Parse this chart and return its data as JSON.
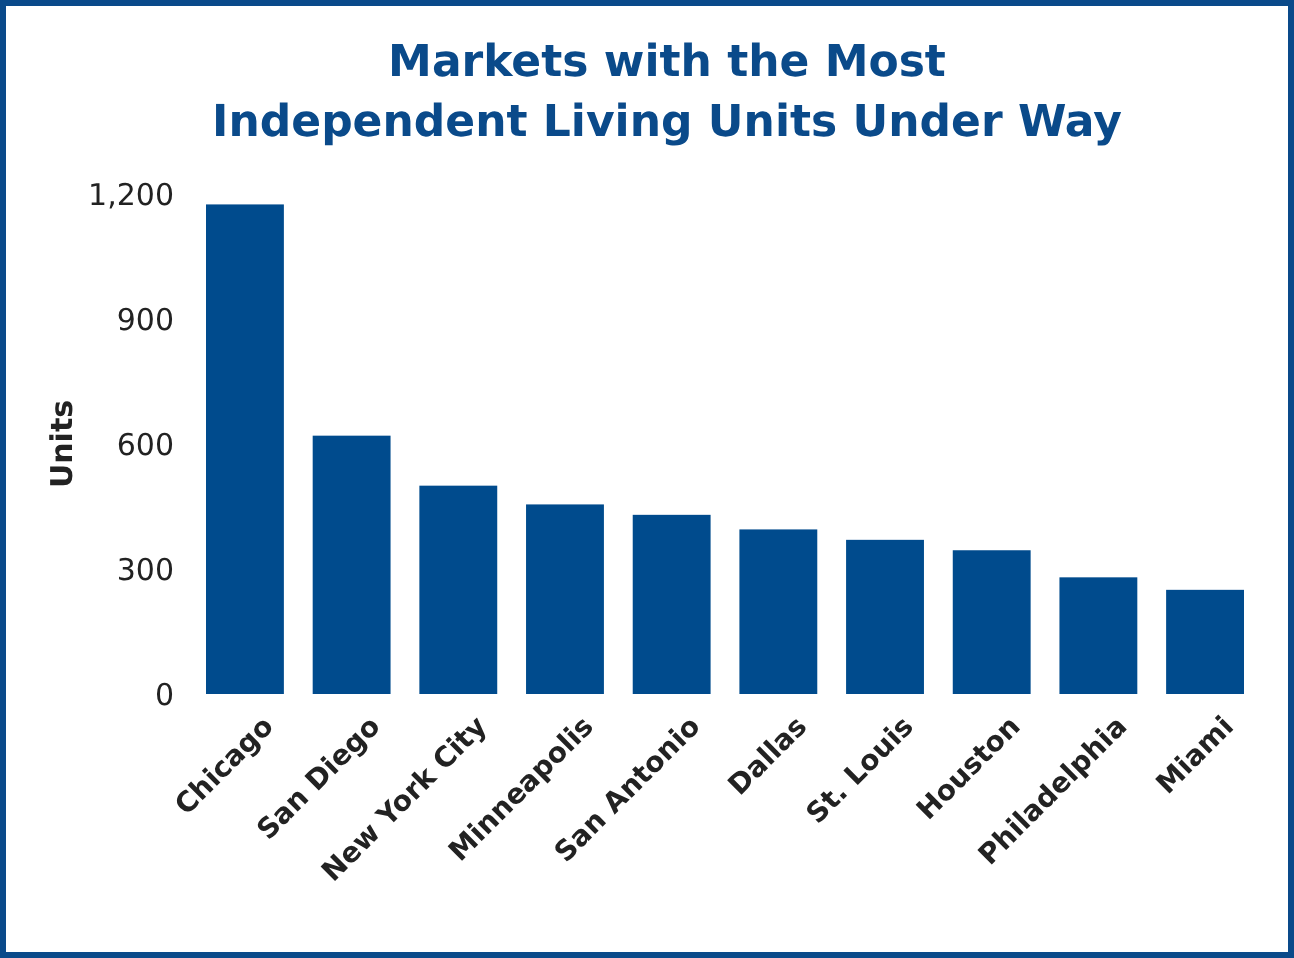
{
  "chart_data": {
    "type": "bar",
    "title": "Markets with the Most\nIndependent Living Units Under Way",
    "ylabel": "Units",
    "categories": [
      "Chicago",
      "San Diego",
      "New York City",
      "Minneapolis",
      "San Antonio",
      "Dallas",
      "St. Louis",
      "Houston",
      "Philadelphia",
      "Miami"
    ],
    "values": [
      1175,
      620,
      500,
      455,
      430,
      395,
      370,
      345,
      280,
      250
    ],
    "color": "#004b8d",
    "ylim": [
      0,
      1200
    ],
    "yticks": [
      0,
      300,
      600,
      900,
      {
        "value": 1200,
        "label": "1,200"
      }
    ],
    "grid": false
  }
}
